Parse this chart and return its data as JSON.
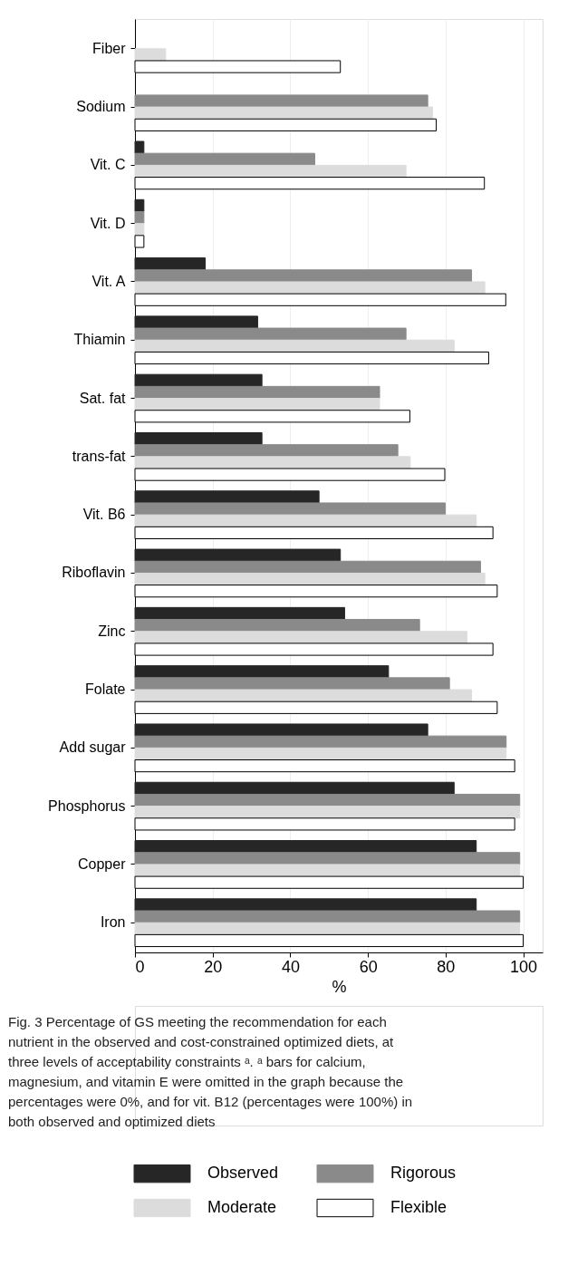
{
  "chart_data": {
    "type": "bar",
    "orientation": "horizontal",
    "xlabel": "%",
    "categories": [
      "Fiber",
      "Sodium",
      "Vit. C",
      "Vit. D",
      "Vit. A",
      "Thiamin",
      "Sat. fat",
      "trans-fat",
      "Vit. B6",
      "Riboflavin",
      "Zinc",
      "Folate",
      "Add sugar",
      "Phosphorus",
      "Copper",
      "Iron"
    ],
    "series": [
      {
        "name": "Observed",
        "color": "#262626",
        "values": [
          null,
          null,
          2.3,
          2.3,
          18.1,
          31.6,
          32.7,
          32.7,
          47.4,
          52.9,
          54.0,
          65.3,
          75.4,
          82.2,
          87.9,
          87.9
        ]
      },
      {
        "name": "Rigorous",
        "color": "#8a8a8a",
        "values": [
          null,
          75.4,
          46.3,
          2.3,
          86.7,
          69.8,
          63.0,
          67.7,
          79.9,
          89.0,
          73.3,
          81.0,
          95.6,
          99.1,
          99.1,
          99.1
        ]
      },
      {
        "name": "Moderate",
        "color": "#dcdcdc",
        "values": [
          7.9,
          76.6,
          69.8,
          2.3,
          90.1,
          82.2,
          63.0,
          70.9,
          87.9,
          90.1,
          85.5,
          86.7,
          95.6,
          99.1,
          99.1,
          99.1
        ]
      },
      {
        "name": "Flexible",
        "color": "#ffffff",
        "values": [
          52.9,
          77.6,
          90.0,
          2.3,
          95.5,
          91.1,
          70.8,
          79.8,
          92.2,
          93.3,
          92.2,
          93.3,
          97.8,
          97.8,
          100,
          100
        ]
      }
    ],
    "xlim": [
      0,
      105
    ],
    "xticks": [
      0,
      20,
      40,
      60,
      80,
      100
    ],
    "grid": "x",
    "legend": "bottom",
    "annotations": [
      "Fig. 3 Percentage of GS meeting the recommendation for each nutrient in the observed and cost-constrained optimized diets, at three levels of acceptability constraints ᵃ. ᵃ bars for calcium, magnesium, and vitamin E were omitted in the graph because the percentages were 0%, and for vit. B12 (percentages were 100%) in both observed and optimized diets"
    ]
  }
}
